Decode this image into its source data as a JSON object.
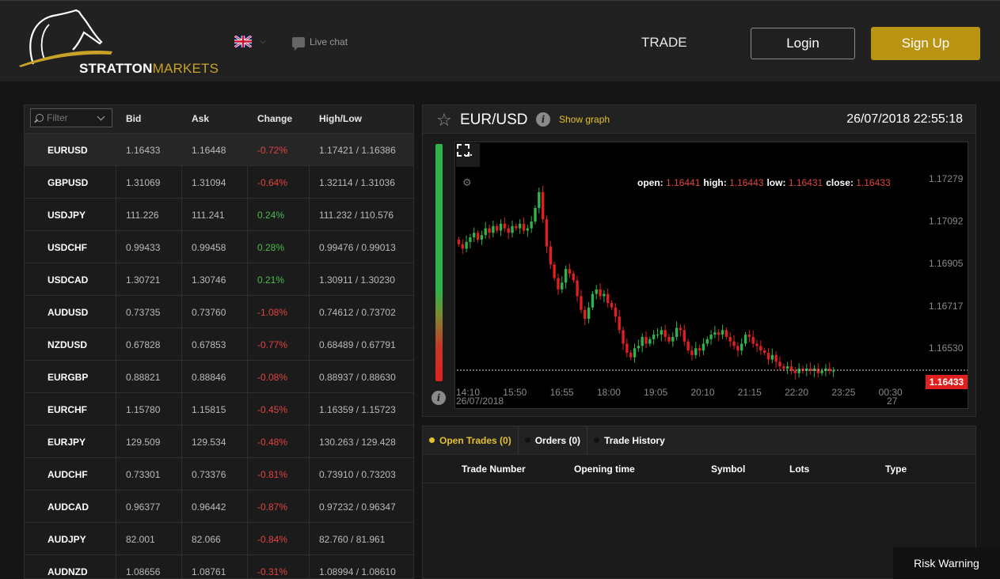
{
  "header": {
    "logo_primary": "STRATTON",
    "logo_secondary": "MARKETS",
    "language_icon": "uk-flag-icon",
    "live_chat": "Live chat",
    "trade": "TRADE",
    "login": "Login",
    "signup": "Sign Up"
  },
  "quotes": {
    "filter_placeholder": "Filter",
    "columns": {
      "bid": "Bid",
      "ask": "Ask",
      "change": "Change",
      "highlow": "High/Low"
    },
    "rows": [
      {
        "symbol": "EURUSD",
        "bid": "1.16433",
        "ask": "1.16448",
        "change": "-0.72%",
        "highlow": "1.17421 / 1.16386"
      },
      {
        "symbol": "GBPUSD",
        "bid": "1.31069",
        "ask": "1.31094",
        "change": "-0.64%",
        "highlow": "1.32114 / 1.31036"
      },
      {
        "symbol": "USDJPY",
        "bid": "111.226",
        "ask": "111.241",
        "change": "0.24%",
        "highlow": "111.232 / 110.576"
      },
      {
        "symbol": "USDCHF",
        "bid": "0.99433",
        "ask": "0.99458",
        "change": "0.28%",
        "highlow": "0.99476 / 0.99013"
      },
      {
        "symbol": "USDCAD",
        "bid": "1.30721",
        "ask": "1.30746",
        "change": "0.21%",
        "highlow": "1.30911 / 1.30230"
      },
      {
        "symbol": "AUDUSD",
        "bid": "0.73735",
        "ask": "0.73760",
        "change": "-1.08%",
        "highlow": "0.74612 / 0.73702"
      },
      {
        "symbol": "NZDUSD",
        "bid": "0.67828",
        "ask": "0.67853",
        "change": "-0.77%",
        "highlow": "0.68489 / 0.67791"
      },
      {
        "symbol": "EURGBP",
        "bid": "0.88821",
        "ask": "0.88846",
        "change": "-0.08%",
        "highlow": "0.88937 / 0.88630"
      },
      {
        "symbol": "EURCHF",
        "bid": "1.15780",
        "ask": "1.15815",
        "change": "-0.45%",
        "highlow": "1.16359 / 1.15723"
      },
      {
        "symbol": "EURJPY",
        "bid": "129.509",
        "ask": "129.534",
        "change": "-0.48%",
        "highlow": "130.263 / 129.428"
      },
      {
        "symbol": "AUDCHF",
        "bid": "0.73301",
        "ask": "0.73376",
        "change": "-0.81%",
        "highlow": "0.73910 / 0.73203"
      },
      {
        "symbol": "AUDCAD",
        "bid": "0.96377",
        "ask": "0.96442",
        "change": "-0.87%",
        "highlow": "0.97232 / 0.96347"
      },
      {
        "symbol": "AUDJPY",
        "bid": "82.001",
        "ask": "82.066",
        "change": "-0.84%",
        "highlow": "82.760 / 81.961"
      },
      {
        "symbol": "AUDNZD",
        "bid": "1.08656",
        "ask": "1.08761",
        "change": "-0.31%",
        "highlow": "1.08994 / 1.08610"
      }
    ]
  },
  "chart_panel": {
    "pair": "EUR/USD",
    "show_graph": "Show graph",
    "datetime": "26/07/2018 22:55:18",
    "menu_label": "...",
    "ohlc": {
      "open_label": "open:",
      "open": "1.16441",
      "high_label": "high:",
      "high": "1.16443",
      "low_label": "low:",
      "low": "1.16431",
      "close_label": "close:",
      "close": "1.16433"
    },
    "last_price": "1.16433"
  },
  "chart_data": {
    "type": "candlestick",
    "x_ticks": [
      "14:10",
      "15:50",
      "16:55",
      "18:00",
      "19:05",
      "20:10",
      "21:15",
      "22:20",
      "23:25",
      "00:30"
    ],
    "x_tick_sublabels": {
      "14:10": "26/07/2018",
      "00:30": "27"
    },
    "y_ticks": [
      1.17279,
      1.17092,
      1.16905,
      1.16717,
      1.1653
    ],
    "ylim": [
      1.1637,
      1.1737
    ],
    "last": 1.16433,
    "closes": [
      1.1699,
      1.1697,
      1.17,
      1.1702,
      1.1704,
      1.1701,
      1.1703,
      1.1706,
      1.1704,
      1.1707,
      1.1705,
      1.1708,
      1.1706,
      1.1704,
      1.1707,
      1.1706,
      1.1708,
      1.1705,
      1.1706,
      1.1709,
      1.1715,
      1.1722,
      1.171,
      1.1698,
      1.169,
      1.1684,
      1.1679,
      1.1682,
      1.1688,
      1.1686,
      1.1683,
      1.1676,
      1.167,
      1.1666,
      1.1671,
      1.1677,
      1.1679,
      1.1676,
      1.1677,
      1.1673,
      1.1671,
      1.1667,
      1.1661,
      1.1655,
      1.1651,
      1.1649,
      1.1653,
      1.1654,
      1.1658,
      1.1655,
      1.1657,
      1.1659,
      1.1659,
      1.1661,
      1.1658,
      1.1656,
      1.1658,
      1.1662,
      1.1661,
      1.1656,
      1.1652,
      1.165,
      1.1653,
      1.1652,
      1.1655,
      1.1657,
      1.1659,
      1.166,
      1.1659,
      1.1661,
      1.1658,
      1.1656,
      1.1654,
      1.1652,
      1.1655,
      1.1659,
      1.1658,
      1.1655,
      1.1654,
      1.1652,
      1.1651,
      1.1648,
      1.165,
      1.1647,
      1.1645,
      1.1644,
      1.1645,
      1.1643,
      1.1642,
      1.1644,
      1.1643,
      1.1644,
      1.1643,
      1.1644,
      1.1642,
      1.1643,
      1.1644,
      1.1643,
      1.1643
    ]
  },
  "colors": {
    "accent": "#b99312",
    "link": "#e6c02a",
    "up": "#2fb34a",
    "down": "#e0201e"
  },
  "trades": {
    "tabs": [
      {
        "label": "Open Trades (0)"
      },
      {
        "label": "Orders (0)"
      },
      {
        "label": "Trade History"
      }
    ],
    "columns": {
      "trade_number": "Trade Number",
      "opening_time": "Opening time",
      "symbol": "Symbol",
      "lots": "Lots",
      "type": "Type"
    }
  },
  "risk_warning": "Risk Warning"
}
